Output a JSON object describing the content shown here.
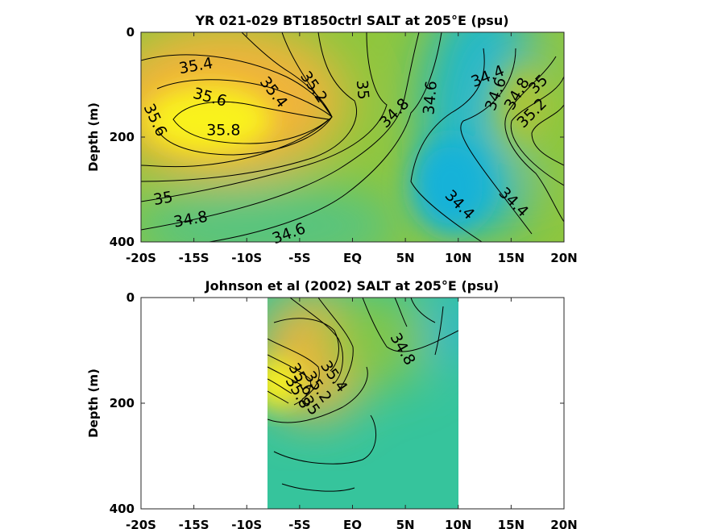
{
  "chart_data": [
    {
      "type": "heatmap",
      "title": "YR 021-029 BT1850ctrl SALT at 205°E (psu)",
      "ylabel": "Depth (m)",
      "x_ticks": [
        "-20S",
        "-15S",
        "-10S",
        "-5S",
        "EQ",
        "5N",
        "10N",
        "15N",
        "20N"
      ],
      "y_ticks": [
        "0",
        "200",
        "400"
      ],
      "xlim": [
        -20,
        20
      ],
      "ylim": [
        400,
        0
      ],
      "colormap": "parula",
      "contour_labels": [
        {
          "text": "35.4",
          "lat": -14.8,
          "depth": 65,
          "rot": -10
        },
        {
          "text": "35.6",
          "lat": -13.5,
          "depth": 125,
          "rot": 15
        },
        {
          "text": "35.4",
          "lat": -7.5,
          "depth": 115,
          "rot": 52
        },
        {
          "text": "35.2",
          "lat": -3.7,
          "depth": 105,
          "rot": 55
        },
        {
          "text": "35",
          "lat": 0.9,
          "depth": 110,
          "rot": 85
        },
        {
          "text": "35.6",
          "lat": -18.7,
          "depth": 168,
          "rot": 65
        },
        {
          "text": "35.8",
          "lat": -12.2,
          "depth": 188,
          "rot": 0
        },
        {
          "text": "34.8",
          "lat": 4.0,
          "depth": 155,
          "rot": -45
        },
        {
          "text": "34.6",
          "lat": 7.4,
          "depth": 125,
          "rot": -85
        },
        {
          "text": "34.4",
          "lat": 12.8,
          "depth": 85,
          "rot": -22
        },
        {
          "text": "34.6",
          "lat": 13.6,
          "depth": 118,
          "rot": -70
        },
        {
          "text": "34.8",
          "lat": 15.6,
          "depth": 118,
          "rot": -60
        },
        {
          "text": "35",
          "lat": 17.6,
          "depth": 100,
          "rot": -45
        },
        {
          "text": "35.2",
          "lat": 17.0,
          "depth": 155,
          "rot": -45
        },
        {
          "text": "35",
          "lat": -17.9,
          "depth": 318,
          "rot": -10
        },
        {
          "text": "34.8",
          "lat": -15.3,
          "depth": 358,
          "rot": -10
        },
        {
          "text": "34.6",
          "lat": -6.0,
          "depth": 385,
          "rot": -20
        },
        {
          "text": "34.4",
          "lat": 10.1,
          "depth": 330,
          "rot": 45
        },
        {
          "text": "34.4",
          "lat": 15.2,
          "depth": 325,
          "rot": 45
        }
      ]
    },
    {
      "type": "heatmap",
      "title": "Johnson et al (2002) SALT at 205°E (psu)",
      "ylabel": "Depth (m)",
      "x_ticks": [
        "-20S",
        "-15S",
        "-10S",
        "-5S",
        "EQ",
        "5N",
        "10N",
        "15N",
        "20N"
      ],
      "y_ticks": [
        "0",
        "200",
        "400"
      ],
      "xlim": [
        -20,
        20
      ],
      "ylim": [
        400,
        0
      ],
      "data_lat_range": [
        -8,
        10
      ],
      "colormap": "parula",
      "contour_labels": [
        {
          "text": "34.8",
          "lat": 4.7,
          "depth": 98,
          "rot": 60
        },
        {
          "text": "35.4",
          "lat": -1.8,
          "depth": 150,
          "rot": 55
        },
        {
          "text": "35.2",
          "lat": -3.3,
          "depth": 170,
          "rot": 55
        },
        {
          "text": "35.6",
          "lat": -4.9,
          "depth": 155,
          "rot": 60
        },
        {
          "text": "35.8",
          "lat": -5.2,
          "depth": 180,
          "rot": 60
        },
        {
          "text": "35",
          "lat": -4.0,
          "depth": 205,
          "rot": 55
        }
      ]
    }
  ],
  "colors": {
    "salt_high": "#f9fa14",
    "salt_mid_high": "#f5b93c",
    "salt_mid": "#8fc63e",
    "salt_low_mid": "#30c49e",
    "salt_low": "#14b2dc"
  }
}
